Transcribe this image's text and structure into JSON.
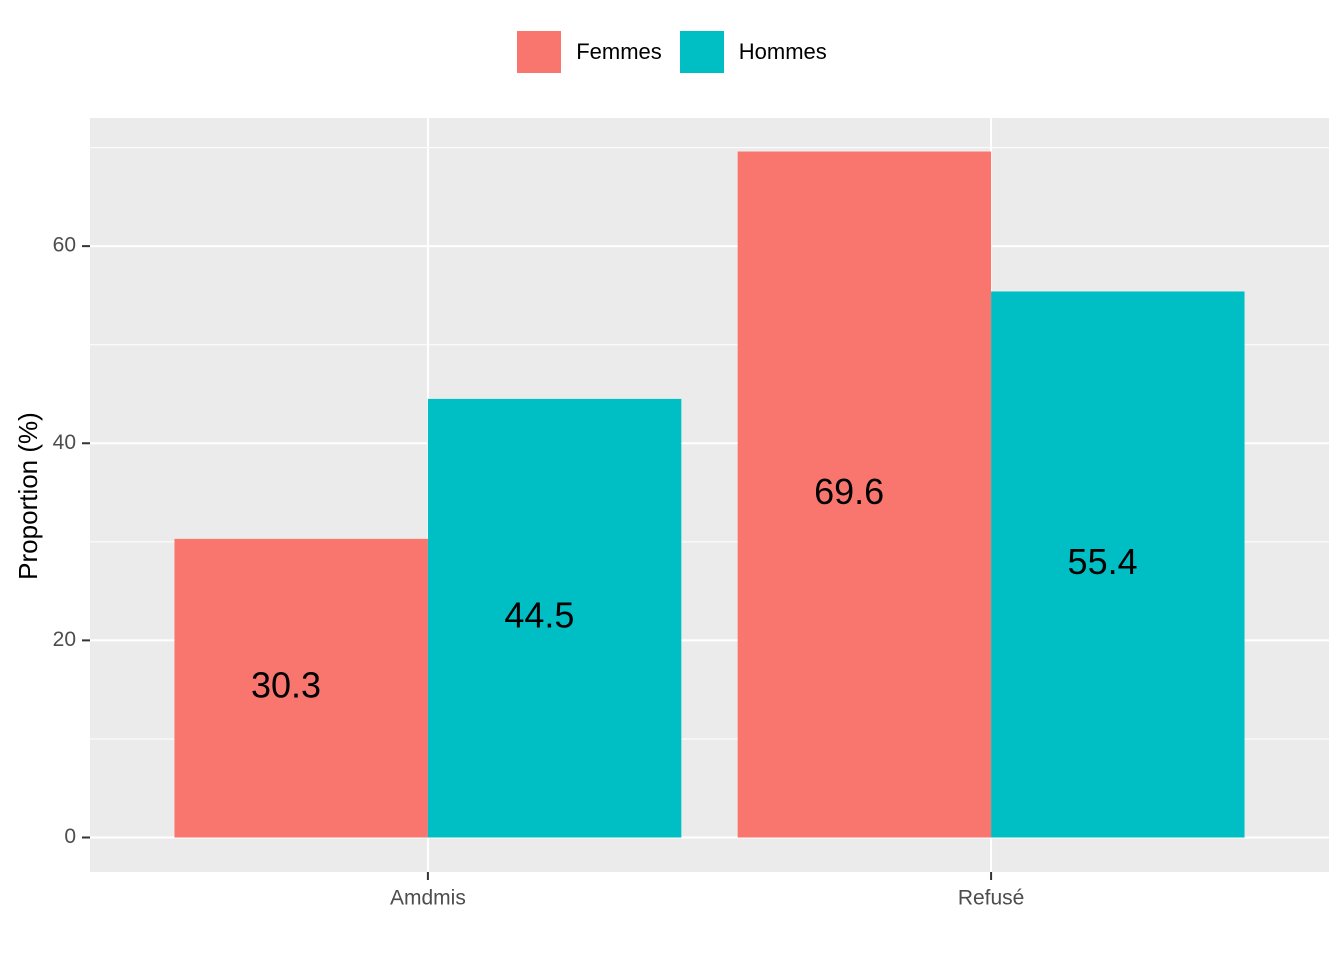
{
  "chart_data": {
    "type": "bar",
    "categories": [
      "Amdmis",
      "Refusé"
    ],
    "series": [
      {
        "name": "Femmes",
        "values": [
          30.3,
          69.6
        ],
        "color": "#F8766D"
      },
      {
        "name": "Hommes",
        "values": [
          44.5,
          55.4
        ],
        "color": "#00BFC4"
      }
    ],
    "data_labels": [
      [
        "30.3",
        "69.6"
      ],
      [
        "44.5",
        "55.4"
      ]
    ],
    "ylabel": "Proportion (%)",
    "xlabel": "",
    "ylim": [
      -3.5,
      73
    ],
    "yticks": [
      0,
      20,
      40,
      60
    ],
    "ytick_labels": [
      "0",
      "20",
      "40",
      "60"
    ],
    "grid": true,
    "legend_position": "top",
    "panel_background": "#EBEBEB",
    "grid_color": "#FFFFFF"
  }
}
